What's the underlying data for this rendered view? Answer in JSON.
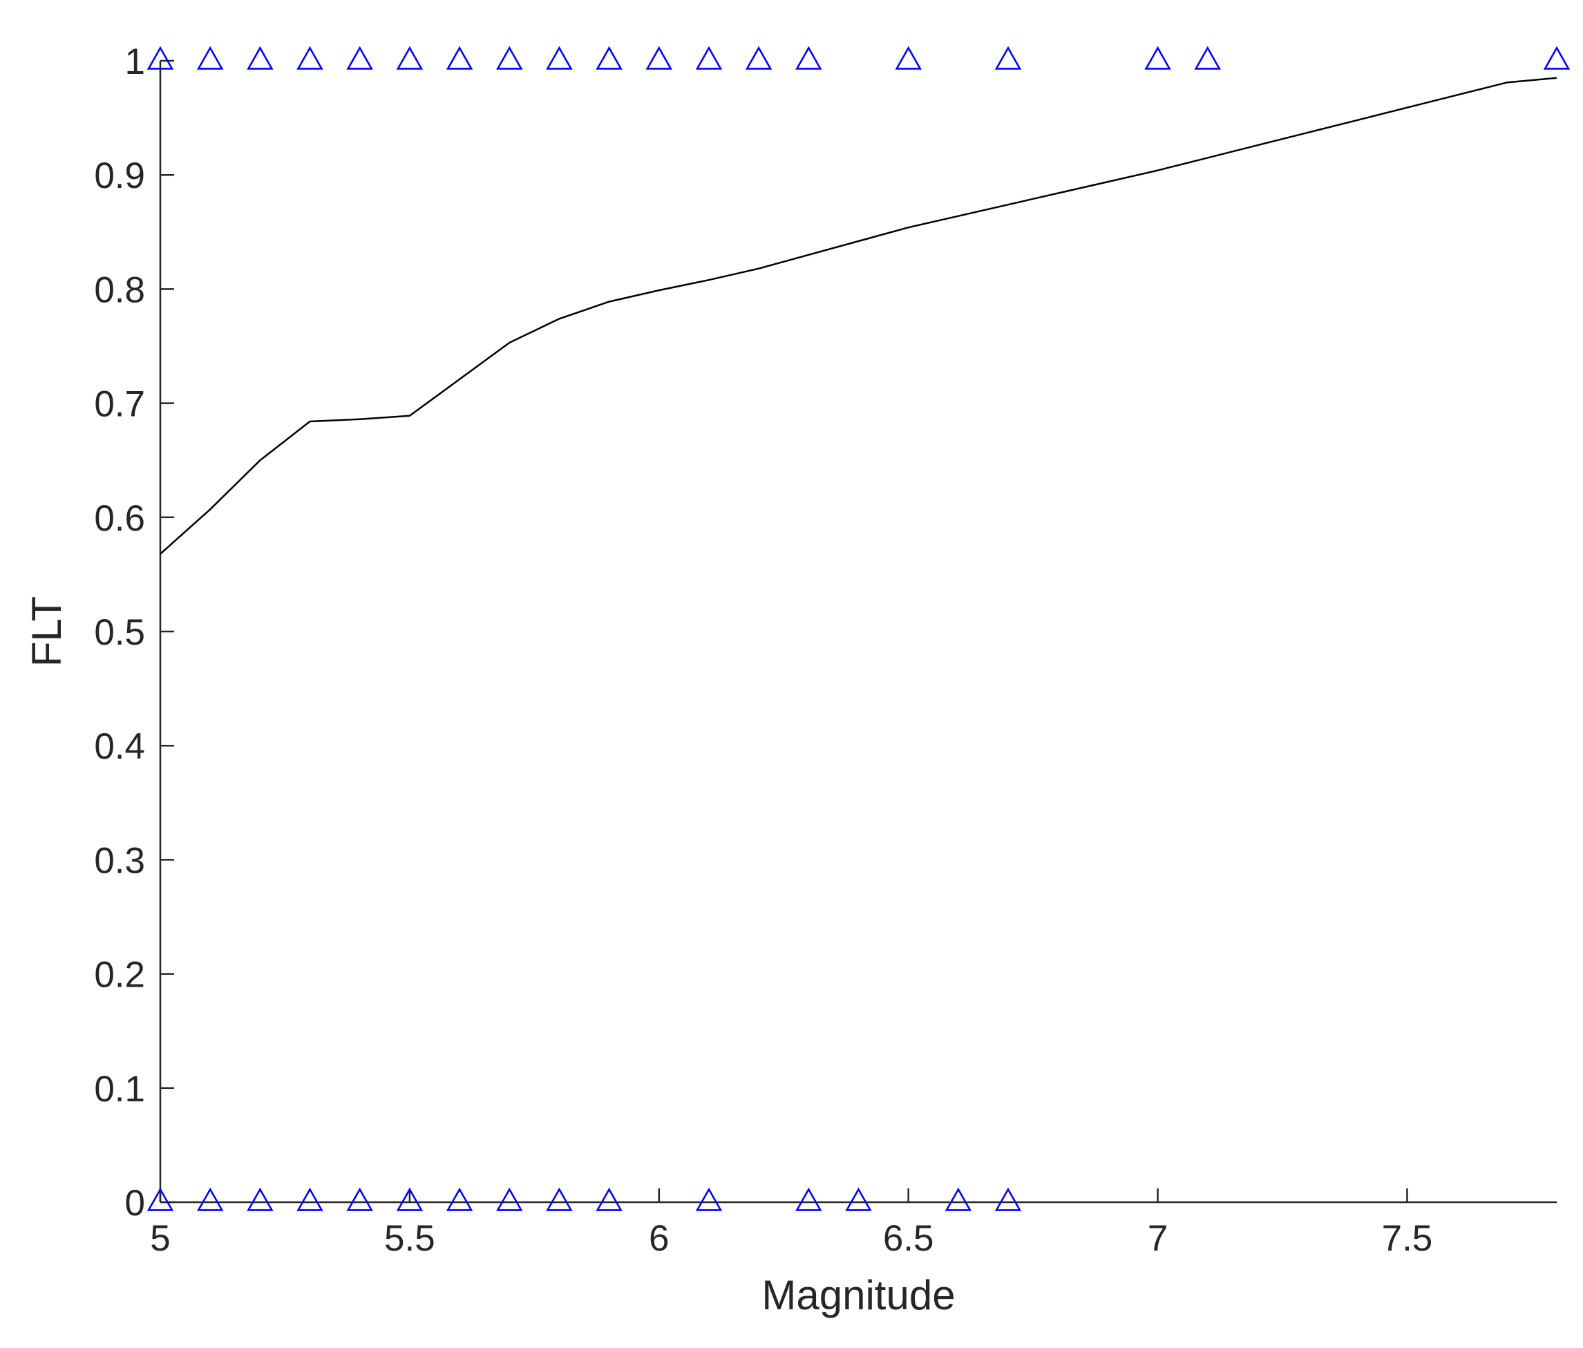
{
  "chart_data": {
    "type": "line",
    "title": "",
    "xlabel": "Magnitude",
    "ylabel": "FLT",
    "xlim": [
      5,
      7.8
    ],
    "ylim": [
      0,
      1
    ],
    "xticks": [
      5,
      5.5,
      6,
      6.5,
      7,
      7.5
    ],
    "xtick_labels": [
      "5",
      "5.5",
      "6",
      "6.5",
      "7",
      "7.5"
    ],
    "yticks": [
      0,
      0.1,
      0.2,
      0.3,
      0.4,
      0.5,
      0.6,
      0.7,
      0.8,
      0.9,
      1
    ],
    "ytick_labels": [
      "0",
      "0.1",
      "0.2",
      "0.3",
      "0.4",
      "0.5",
      "0.6",
      "0.7",
      "0.8",
      "0.9",
      "1"
    ],
    "grid": false,
    "legend": "none",
    "series": [
      {
        "kind": "line",
        "color": "#000000",
        "x": [
          5.0,
          5.1,
          5.2,
          5.3,
          5.4,
          5.5,
          5.6,
          5.7,
          5.8,
          5.9,
          6.0,
          6.1,
          6.2,
          6.3,
          6.4,
          6.5,
          6.6,
          6.7,
          6.8,
          6.9,
          7.0,
          7.1,
          7.2,
          7.3,
          7.4,
          7.5,
          7.6,
          7.7,
          7.8
        ],
        "y": [
          0.568,
          0.607,
          0.65,
          0.684,
          0.686,
          0.689,
          0.721,
          0.753,
          0.774,
          0.789,
          0.799,
          0.808,
          0.818,
          0.83,
          0.842,
          0.854,
          0.864,
          0.874,
          0.884,
          0.894,
          0.904,
          0.915,
          0.926,
          0.937,
          0.948,
          0.959,
          0.97,
          0.981,
          0.985
        ]
      },
      {
        "kind": "scatter",
        "marker": "triangle",
        "color": "#0000ff",
        "x": [
          5.0,
          5.1,
          5.2,
          5.3,
          5.4,
          5.5,
          5.6,
          5.7,
          5.8,
          5.9,
          6.0,
          6.1,
          6.2,
          6.3,
          6.5,
          6.7,
          7.0,
          7.1,
          7.8
        ],
        "y": [
          1,
          1,
          1,
          1,
          1,
          1,
          1,
          1,
          1,
          1,
          1,
          1,
          1,
          1,
          1,
          1,
          1,
          1,
          1
        ]
      },
      {
        "kind": "scatter",
        "marker": "triangle",
        "color": "#0000ff",
        "x": [
          5.0,
          5.1,
          5.2,
          5.3,
          5.4,
          5.5,
          5.6,
          5.7,
          5.8,
          5.9,
          6.1,
          6.3,
          6.4,
          6.6,
          6.7
        ],
        "y": [
          0,
          0,
          0,
          0,
          0,
          0,
          0,
          0,
          0,
          0,
          0,
          0,
          0,
          0,
          0
        ]
      }
    ]
  }
}
